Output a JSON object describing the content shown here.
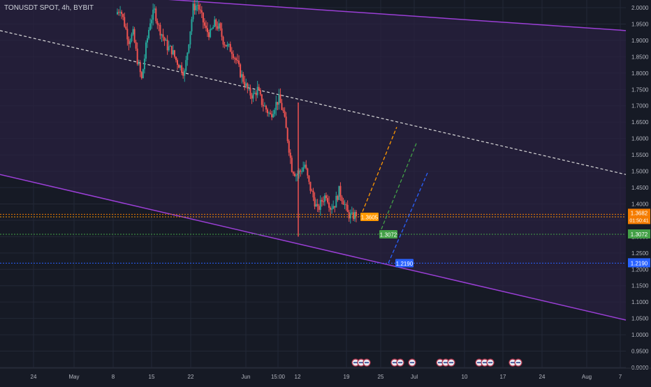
{
  "header": {
    "symbol_line": "TONUSDT SPOT, 4h, BYBIT"
  },
  "colors": {
    "background": "#161a25",
    "grid": "#232836",
    "channel_line": "#9b3fd6",
    "channel_fill": "#2a2140",
    "midline": "#d9d9d9",
    "candle_up": "#26a69a",
    "candle_down": "#ef5350",
    "orange": "#ff9800",
    "green": "#43a047",
    "blue": "#2962ff",
    "current_price": "#f57c00",
    "axis_text": "#b2b5be"
  },
  "price_axis": {
    "ticks": [
      "2.0000",
      "1.9500",
      "1.9000",
      "1.8500",
      "1.8000",
      "1.7500",
      "1.7000",
      "1.6500",
      "1.6000",
      "1.5500",
      "1.5000",
      "1.4500",
      "1.4000",
      "1.3500",
      "1.3000",
      "1.2500",
      "1.2000",
      "1.1500",
      "1.1000",
      "1.0500",
      "1.0000",
      "0.9500",
      "0.9000"
    ],
    "tick_values": [
      2.0,
      1.95,
      1.9,
      1.85,
      1.8,
      1.75,
      1.7,
      1.65,
      1.6,
      1.55,
      1.5,
      1.45,
      1.4,
      1.35,
      1.3,
      1.25,
      1.2,
      1.15,
      1.1,
      1.05,
      1.0,
      0.95,
      0.9
    ],
    "range": [
      0.9,
      2.0
    ],
    "current_price": {
      "value": "1.3682",
      "countdown": "01:50:41"
    },
    "badges": [
      {
        "value": "1.3072",
        "color": "#43a047"
      },
      {
        "value": "1.2190",
        "color": "#2962ff"
      }
    ]
  },
  "time_axis": {
    "labels": [
      "24",
      "May",
      "8",
      "15",
      "22",
      "Jun",
      "15:00",
      "12",
      "19",
      "25",
      "Jul",
      "10",
      "17",
      "24",
      "Aug",
      "7"
    ]
  },
  "chart_data": {
    "type": "candlestick",
    "title": "TONUSDT SPOT, 4h, BYBIT",
    "ylim": [
      0.9,
      2.0
    ],
    "y_scale": "linear",
    "grid": true,
    "channel": {
      "upper_line": {
        "from": 2.06,
        "to": 1.93
      },
      "lower_line": {
        "from": 1.49,
        "to": 1.045
      },
      "midline_dashed": {
        "from": 1.93,
        "to": 1.49
      }
    },
    "horizontal_levels": [
      {
        "value": 1.3605,
        "color": "#ff9800",
        "label": "1.3605"
      },
      {
        "value": 1.3682,
        "color": "#f57c00",
        "label": "1.3682"
      },
      {
        "value": 1.3072,
        "color": "#43a047",
        "label": "1.3072"
      },
      {
        "value": 1.219,
        "color": "#2962ff",
        "label": "1.2190"
      }
    ],
    "projections": [
      {
        "color": "#ff9800",
        "from": 1.3605,
        "to": 1.635
      },
      {
        "color": "#43a047",
        "from": 1.3072,
        "to": 1.585
      },
      {
        "color": "#2962ff",
        "from": 1.219,
        "to": 1.495
      }
    ],
    "price_path": [
      [
        1.98,
        2.0,
        1.95,
        1.9,
        1.92,
        1.84,
        1.78,
        1.88,
        1.96,
        1.99,
        1.94,
        1.91,
        1.88,
        1.87,
        1.84,
        1.82,
        1.8,
        1.9,
        2.0,
        2.01,
        1.97,
        1.93,
        1.92,
        1.95,
        1.94,
        1.9,
        1.88,
        1.87,
        1.84,
        1.8,
        1.77,
        1.74,
        1.73,
        1.75,
        1.71,
        1.69,
        1.67,
        1.7,
        1.72,
        1.68,
        1.6,
        1.51,
        1.49,
        1.5,
        1.52,
        1.46,
        1.42,
        1.38,
        1.41,
        1.43,
        1.39,
        1.4,
        1.44,
        1.41,
        1.37,
        1.36,
        1.37
      ]
    ]
  },
  "calendar_icons": [
    0,
    1,
    2,
    3,
    4,
    5,
    6,
    7,
    8,
    9,
    10,
    11,
    12
  ]
}
